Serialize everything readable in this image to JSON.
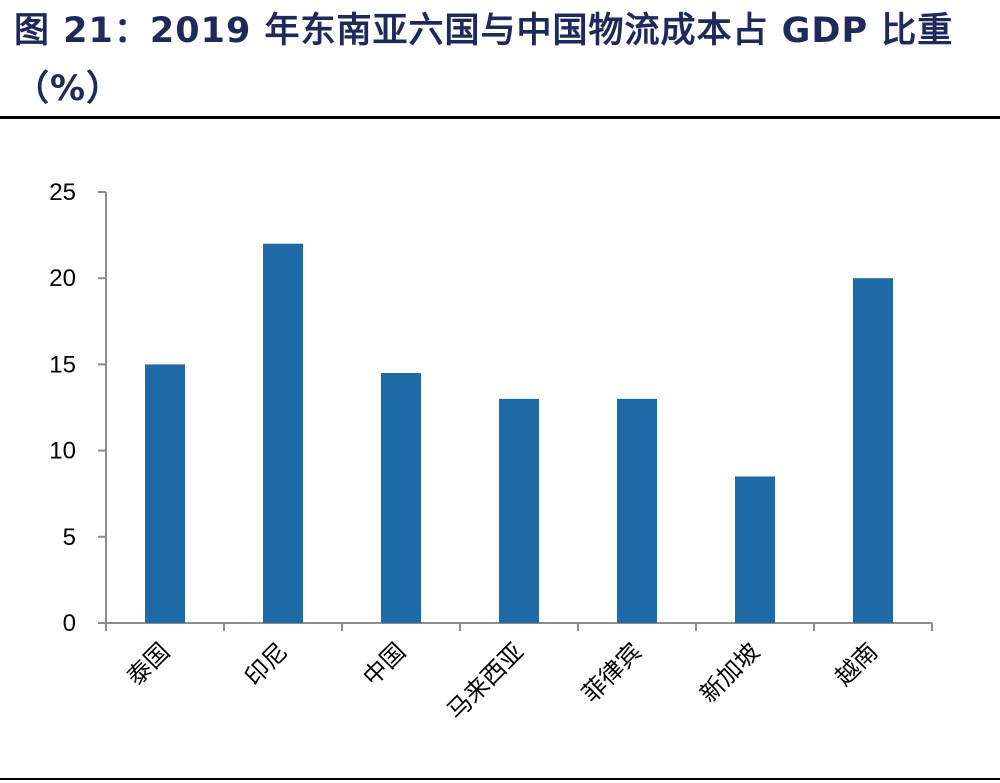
{
  "header": {
    "title": "图 21：2019 年东南亚六国与中国物流成本占 GDP 比重（%）"
  },
  "colors": {
    "bar": "#1f6aa5",
    "axis": "#8c8c8c",
    "title": "#1f2a5a"
  },
  "chart_data": {
    "type": "bar",
    "title": "图 21：2019 年东南亚六国与中国物流成本占 GDP 比重（%）",
    "xlabel": "",
    "ylabel": "",
    "categories": [
      "泰国",
      "印尼",
      "中国",
      "马来西亚",
      "菲律宾",
      "新加坡",
      "越南"
    ],
    "values": [
      15,
      22,
      14.5,
      13,
      13,
      8.5,
      20
    ],
    "ylim": [
      0,
      25
    ],
    "yticks": [
      "0",
      "5",
      "10",
      "15",
      "20",
      "25"
    ],
    "grid": false,
    "legend": "none"
  }
}
